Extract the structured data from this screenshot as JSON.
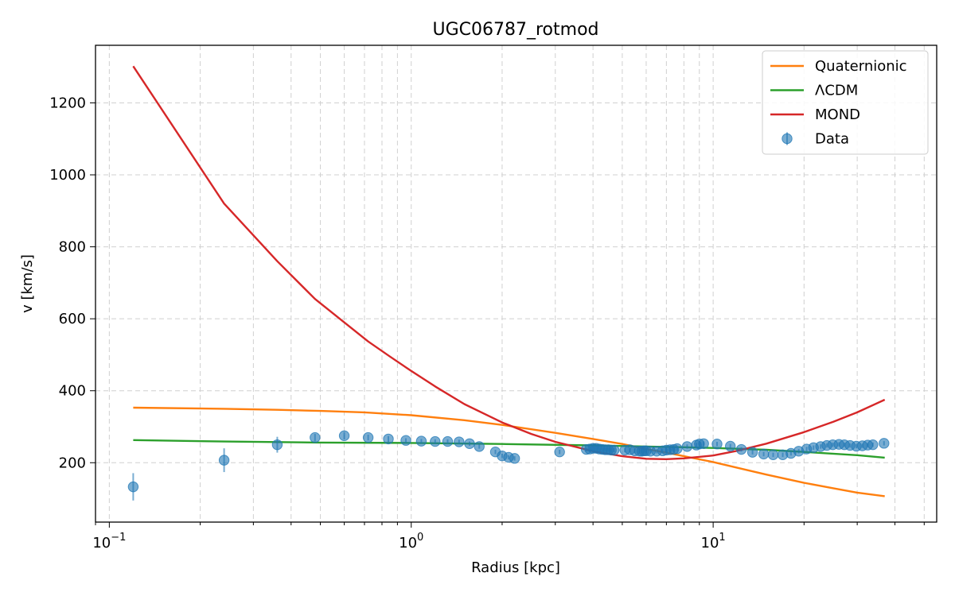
{
  "chart_data": {
    "type": "line",
    "title": "UGC06787_rotmod",
    "xlabel": "Radius [kpc]",
    "ylabel": "v [km/s]",
    "xscale": "log",
    "xlim": [
      0.09,
      55
    ],
    "ylim": [
      35,
      1360
    ],
    "grid": true,
    "legend_placement": "top-right",
    "x_ticks": [
      {
        "value": 0.1,
        "base": "10",
        "exp": "−1"
      },
      {
        "value": 1,
        "base": "10",
        "exp": "0"
      },
      {
        "value": 10,
        "base": "10",
        "exp": "1"
      }
    ],
    "y_ticks": [
      200,
      400,
      600,
      800,
      1000,
      1200
    ],
    "series": [
      {
        "name": "Quaternionic",
        "color": "#ff7f0e",
        "x": [
          0.12,
          0.24,
          0.36,
          0.5,
          0.7,
          1.0,
          1.5,
          2.0,
          3.0,
          4.0,
          5.0,
          6.0,
          7.0,
          8.0,
          10.0,
          12.0,
          15.0,
          20.0,
          25.0,
          30.0,
          37.0
        ],
        "y": [
          353,
          350,
          347,
          344,
          340,
          332,
          318,
          305,
          283,
          266,
          252,
          238,
          228,
          218,
          202,
          186,
          167,
          144,
          129,
          117,
          107
        ]
      },
      {
        "name": "ΛCDM",
        "color": "#2ca02c",
        "x": [
          0.12,
          0.24,
          0.5,
          1.0,
          2.0,
          4.0,
          6.0,
          8.0,
          10.0,
          15.0,
          20.0,
          30.0,
          37.0
        ],
        "y": [
          263,
          259,
          256,
          255,
          252,
          248,
          245,
          243,
          241,
          236,
          230,
          221,
          214
        ]
      },
      {
        "name": "MOND",
        "color": "#d62728",
        "x": [
          0.12,
          0.24,
          0.36,
          0.48,
          0.6,
          0.72,
          0.85,
          1.0,
          1.2,
          1.5,
          2.0,
          2.5,
          3.0,
          4.0,
          5.0,
          6.0,
          7.0,
          8.0,
          10.0,
          12.0,
          15.0,
          20.0,
          25.0,
          30.0,
          37.0
        ],
        "y": [
          1302,
          920,
          760,
          655,
          590,
          537,
          495,
          455,
          412,
          363,
          312,
          280,
          258,
          232,
          218,
          211,
          210,
          212,
          220,
          233,
          253,
          285,
          314,
          340,
          375
        ]
      }
    ],
    "scatter": {
      "name": "Data",
      "color": "#1f77b4",
      "x": [
        0.12,
        0.24,
        0.36,
        0.48,
        0.6,
        0.72,
        0.84,
        0.96,
        1.08,
        1.2,
        1.32,
        1.44,
        1.56,
        1.68,
        1.9,
        2.0,
        2.1,
        2.2,
        3.1,
        3.8,
        3.9,
        4.0,
        4.1,
        4.2,
        4.3,
        4.4,
        4.5,
        4.6,
        4.7,
        5.1,
        5.3,
        5.5,
        5.7,
        5.8,
        5.9,
        6.0,
        6.2,
        6.5,
        6.8,
        7.0,
        7.2,
        7.4,
        7.6,
        8.2,
        8.8,
        9.0,
        9.3,
        10.3,
        11.4,
        12.4,
        13.5,
        14.7,
        15.8,
        17.0,
        18.1,
        19.2,
        20.4,
        21.5,
        22.7,
        23.8,
        24.9,
        26.1,
        27.2,
        28.4,
        29.8,
        31.2,
        32.5,
        33.8,
        36.8
      ],
      "y": [
        133,
        207,
        250,
        270,
        275,
        270,
        266,
        262,
        260,
        259,
        259,
        258,
        253,
        245,
        230,
        219,
        215,
        212,
        230,
        237,
        238,
        240,
        240,
        238,
        237,
        236,
        236,
        235,
        235,
        235,
        236,
        233,
        232,
        232,
        233,
        233,
        232,
        232,
        233,
        235,
        236,
        237,
        239,
        245,
        249,
        252,
        253,
        252,
        246,
        237,
        229,
        224,
        222,
        222,
        226,
        232,
        238,
        242,
        245,
        248,
        250,
        251,
        250,
        248,
        246,
        247,
        249,
        250,
        254
      ],
      "yerr": [
        38,
        33,
        22,
        10,
        10,
        8,
        8,
        6,
        6,
        6,
        6,
        6,
        6,
        6,
        6,
        6,
        6,
        6,
        6,
        6,
        6,
        6,
        6,
        6,
        6,
        6,
        6,
        6,
        6,
        6,
        6,
        6,
        6,
        6,
        6,
        6,
        6,
        6,
        6,
        6,
        6,
        6,
        6,
        6,
        6,
        6,
        6,
        6,
        6,
        6,
        6,
        6,
        6,
        6,
        6,
        6,
        6,
        6,
        6,
        6,
        6,
        6,
        6,
        6,
        6,
        6,
        6,
        6,
        6
      ]
    }
  }
}
